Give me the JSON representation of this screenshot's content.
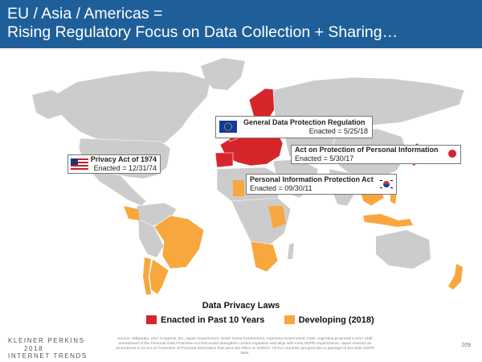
{
  "header": {
    "title_line1": "EU / Asia / Americas =",
    "title_line2": "Rising Regulatory Focus on Data Collection + Sharing…"
  },
  "callouts": {
    "eu": {
      "title": "General Data Protection Regulation",
      "date": "Enacted = 5/25/18",
      "flag": "eu-flag-icon"
    },
    "japan": {
      "title": "Act on Protection of Personal Information",
      "date": "Enacted = 5/30/17",
      "flag": "japan-flag-icon"
    },
    "us": {
      "title": "Privacy Act of 1974",
      "date": "Enacted = 12/31/74",
      "flag": "us-flag-icon"
    },
    "korea": {
      "title": "Personal Information Protection Act",
      "date": "Enacted = 09/30/11",
      "flag": "korea-flag-icon"
    }
  },
  "legend": {
    "title": "Data Privacy Laws",
    "enacted": "Enacted in Past 10 Years",
    "developing": "Developing (2018)"
  },
  "colors": {
    "header": "#1f5f99",
    "enacted": "#d6262b",
    "developing": "#f8a73e",
    "land": "#cccccc",
    "water": "#ffffff"
  },
  "footer": {
    "logo_line1": "KLEINER PERKINS",
    "logo_line2": "2018",
    "logo_line3": "INTERNET TRENDS",
    "source": "Source: Wikipedia, USA Congress, EU, Japan Government, South Korea Government, Argentina Government. Note: Argentina proposed a 2017 draft amendment of the Personal Data Protection Act that would strengthen current regulation and align with most GDPR requirements. Japan enacted an amendment to its Act on Protection of Personal Information that went into effect on 5/30/17. All EU countries grouped due to passage of EU-wide GDPR laws.",
    "page": "209"
  }
}
